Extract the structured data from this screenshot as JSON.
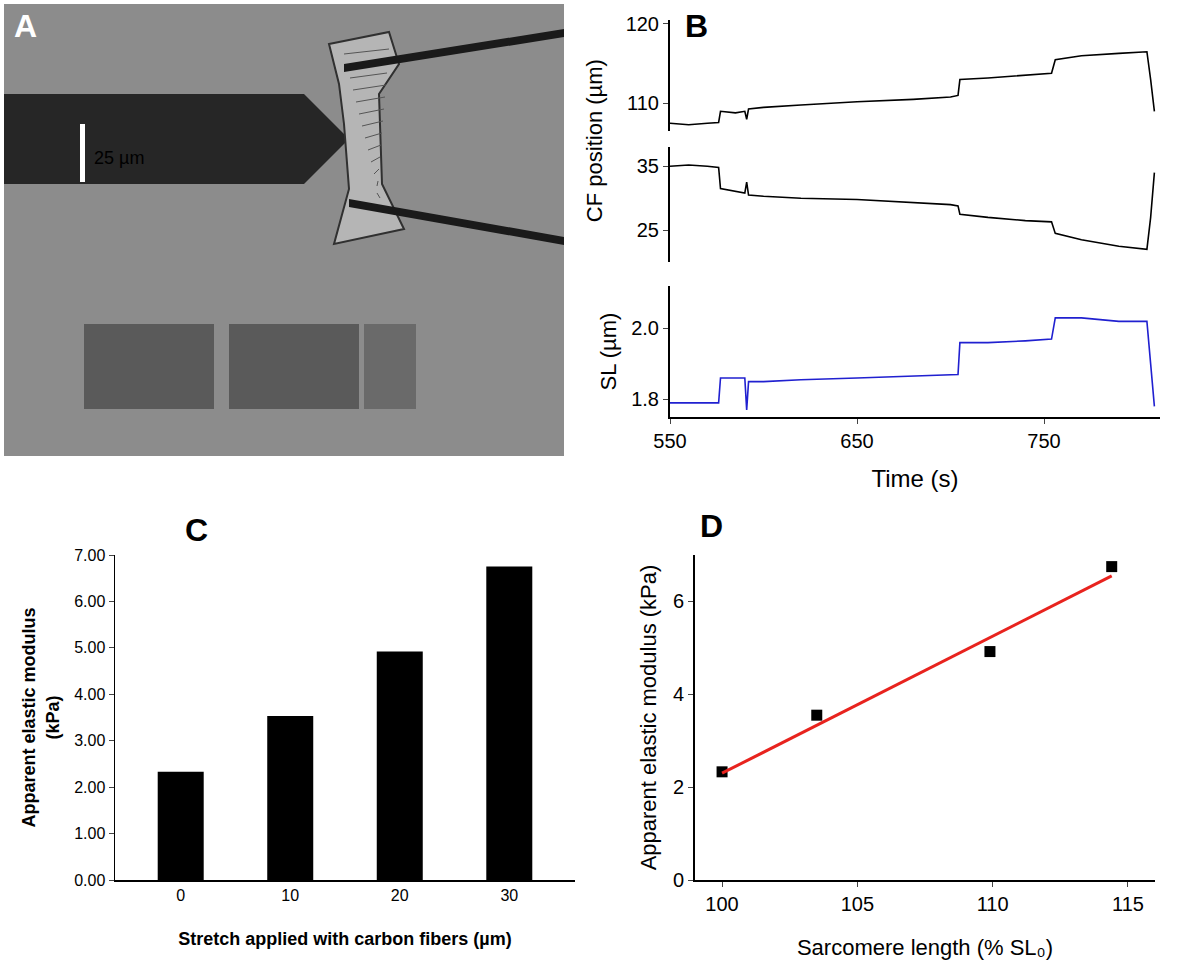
{
  "chart_data": [
    {
      "type": "image",
      "panel": "A",
      "scale_bar_label": "25 µm"
    },
    {
      "type": "line",
      "panel": "B",
      "x": [
        550,
        560,
        570,
        576,
        577,
        585,
        590,
        591,
        592,
        600,
        620,
        650,
        680,
        700,
        704,
        705,
        720,
        740,
        754,
        756,
        770,
        790,
        805,
        807,
        809
      ],
      "xlim": [
        550,
        812
      ],
      "xticks": [
        550,
        650,
        750
      ],
      "xlabel": "Time (s)",
      "ylabel": "CF position (µm)",
      "subplots": [
        {
          "ylim": [
            106.5,
            120.5
          ],
          "yticks": [
            110,
            120
          ],
          "color": "#000000",
          "values": [
            107.5,
            107.3,
            107.5,
            107.6,
            109,
            108.8,
            109,
            108,
            109.3,
            109.5,
            109.8,
            110.2,
            110.5,
            110.8,
            111,
            113,
            113.2,
            113.5,
            113.8,
            115.5,
            116,
            116.3,
            116.5,
            113,
            109
          ]
        },
        {
          "ylim": [
            20,
            38
          ],
          "yticks": [
            25,
            35
          ],
          "color": "#000000",
          "values": [
            35,
            35.2,
            35,
            34.8,
            31.5,
            31,
            30.8,
            32.5,
            30.5,
            30.3,
            30,
            29.8,
            29.3,
            29,
            28.8,
            27.5,
            27,
            26.5,
            26.3,
            24.5,
            23.5,
            22.5,
            22,
            27,
            34
          ]
        },
        {
          "ylim": [
            1.75,
            2.12
          ],
          "yticks": [
            1.8,
            {
              "value": 2,
              "label": "2.0"
            }
          ],
          "ylabel": "SL (µm)",
          "color": "#2020d0",
          "values": [
            1.79,
            1.79,
            1.79,
            1.79,
            1.86,
            1.86,
            1.86,
            1.77,
            1.85,
            1.85,
            1.855,
            1.86,
            1.865,
            1.87,
            1.87,
            1.96,
            1.96,
            1.965,
            1.97,
            2.03,
            2.03,
            2.02,
            2.02,
            1.9,
            1.78
          ]
        }
      ]
    },
    {
      "type": "bar",
      "panel": "C",
      "categories": [
        "0",
        "10",
        "20",
        "30"
      ],
      "values": [
        2.33,
        3.53,
        4.92,
        6.75
      ],
      "color": "#000000",
      "xlabel": "Stretch applied with carbon fibers (µm)",
      "ylabel": "Apparent elastic modulus (kPa)",
      "ylim": [
        0,
        7
      ],
      "yticks": [
        {
          "value": 0,
          "label": "0.00"
        },
        {
          "value": 1,
          "label": "1.00"
        },
        {
          "value": 2,
          "label": "2.00"
        },
        {
          "value": 3,
          "label": "3.00"
        },
        {
          "value": 4,
          "label": "4.00"
        },
        {
          "value": 5,
          "label": "5.00"
        },
        {
          "value": 6,
          "label": "6.00"
        },
        {
          "value": 7,
          "label": "7.00"
        }
      ]
    },
    {
      "type": "scatter",
      "panel": "D",
      "xlabel": "Sarcomere length (% SL₀)",
      "ylabel": "Apparent elastic modulus (kPa)",
      "xlim": [
        99,
        116
      ],
      "xticks": [
        100,
        105,
        110,
        115
      ],
      "ylim": [
        0,
        7
      ],
      "yticks": [
        0,
        2,
        4,
        6
      ],
      "series": [
        {
          "type": "scatter",
          "marker": "square",
          "color": "#000000",
          "x": [
            100,
            103.5,
            109.9,
            114.4
          ],
          "values": [
            2.33,
            3.55,
            4.92,
            6.75
          ]
        },
        {
          "type": "line",
          "color": "#e8231e",
          "x": [
            100,
            114.4
          ],
          "values": [
            2.3,
            6.55
          ]
        }
      ]
    }
  ]
}
